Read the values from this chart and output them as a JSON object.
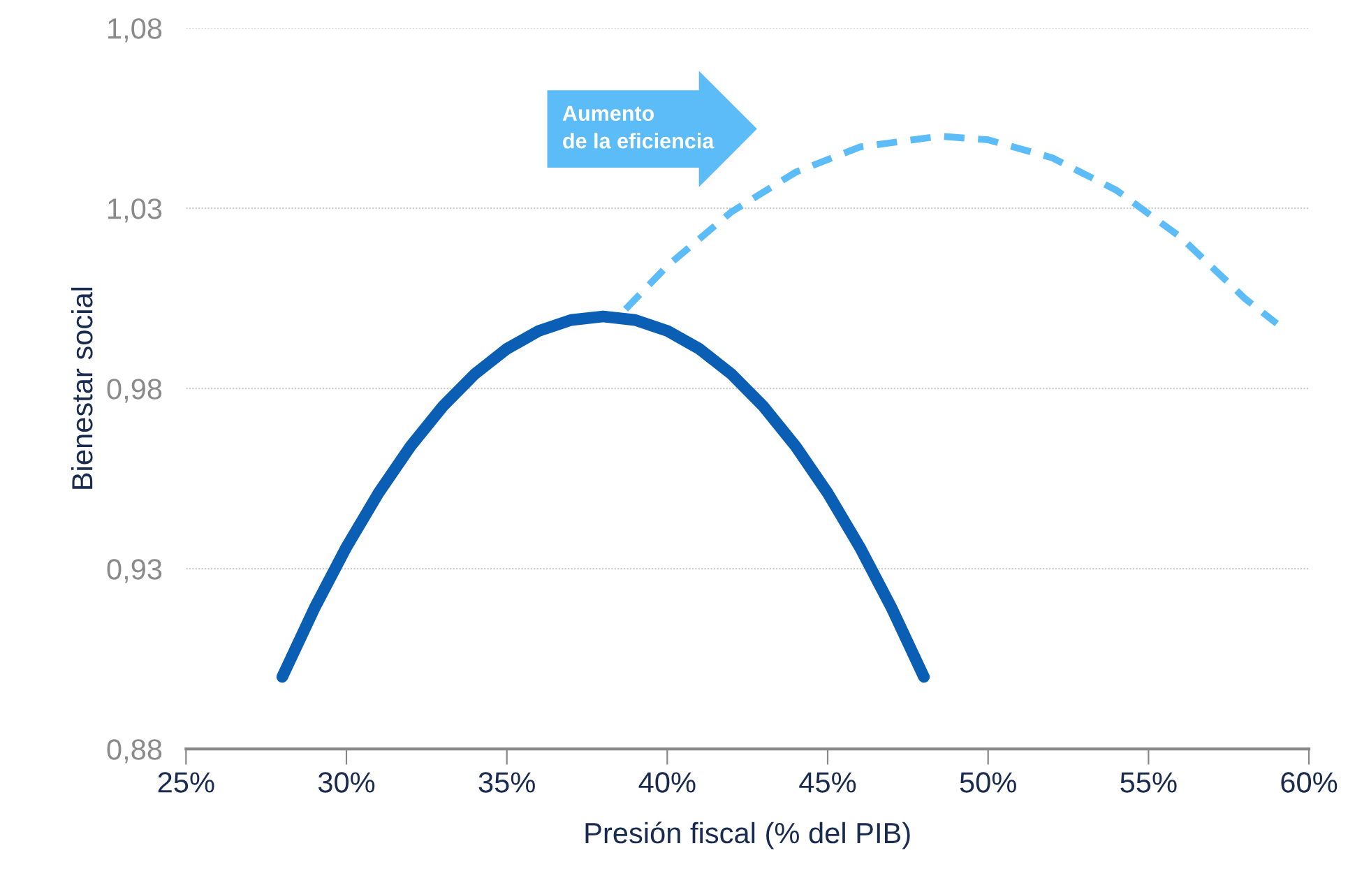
{
  "chart_data": {
    "type": "line",
    "xlabel": "Presión fiscal (% del PIB)",
    "ylabel": "Bienestar social",
    "xlim": [
      25,
      60
    ],
    "ylim": [
      0.88,
      1.08
    ],
    "xticks": [
      {
        "value": 25,
        "label": "25%"
      },
      {
        "value": 30,
        "label": "30%"
      },
      {
        "value": 35,
        "label": "35%"
      },
      {
        "value": 40,
        "label": "40%"
      },
      {
        "value": 45,
        "label": "45%"
      },
      {
        "value": 50,
        "label": "50%"
      },
      {
        "value": 55,
        "label": "55%"
      },
      {
        "value": 60,
        "label": "60%"
      }
    ],
    "yticks": [
      {
        "value": 0.88,
        "label": "0,88"
      },
      {
        "value": 0.93,
        "label": "0,93"
      },
      {
        "value": 0.98,
        "label": "0,98"
      },
      {
        "value": 1.03,
        "label": "1,03"
      },
      {
        "value": 1.08,
        "label": "1,08"
      }
    ],
    "grid": "y",
    "marker": "none",
    "series": [
      {
        "color": "#0a5fb4",
        "line_style": "solid",
        "x": [
          28,
          29,
          30,
          31,
          32,
          33,
          34,
          35,
          36,
          37,
          38,
          39,
          40,
          41,
          42,
          43,
          44,
          45,
          46,
          47,
          48
        ],
        "values": [
          0.9,
          0.919,
          0.936,
          0.951,
          0.964,
          0.975,
          0.984,
          0.991,
          0.996,
          0.999,
          1.0,
          0.999,
          0.996,
          0.991,
          0.984,
          0.975,
          0.964,
          0.951,
          0.936,
          0.919,
          0.9
        ]
      },
      {
        "color": "#5bbcf7",
        "line_style": "dashed",
        "x": [
          38.7,
          40,
          42,
          44,
          46,
          48.5,
          50,
          52,
          54,
          56,
          58,
          59
        ],
        "values": [
          1.002,
          1.014,
          1.029,
          1.04,
          1.047,
          1.05,
          1.049,
          1.044,
          1.035,
          1.022,
          1.005,
          0.998
        ]
      }
    ],
    "annotations": [
      "Aumento\nde la eficiencia"
    ]
  }
}
